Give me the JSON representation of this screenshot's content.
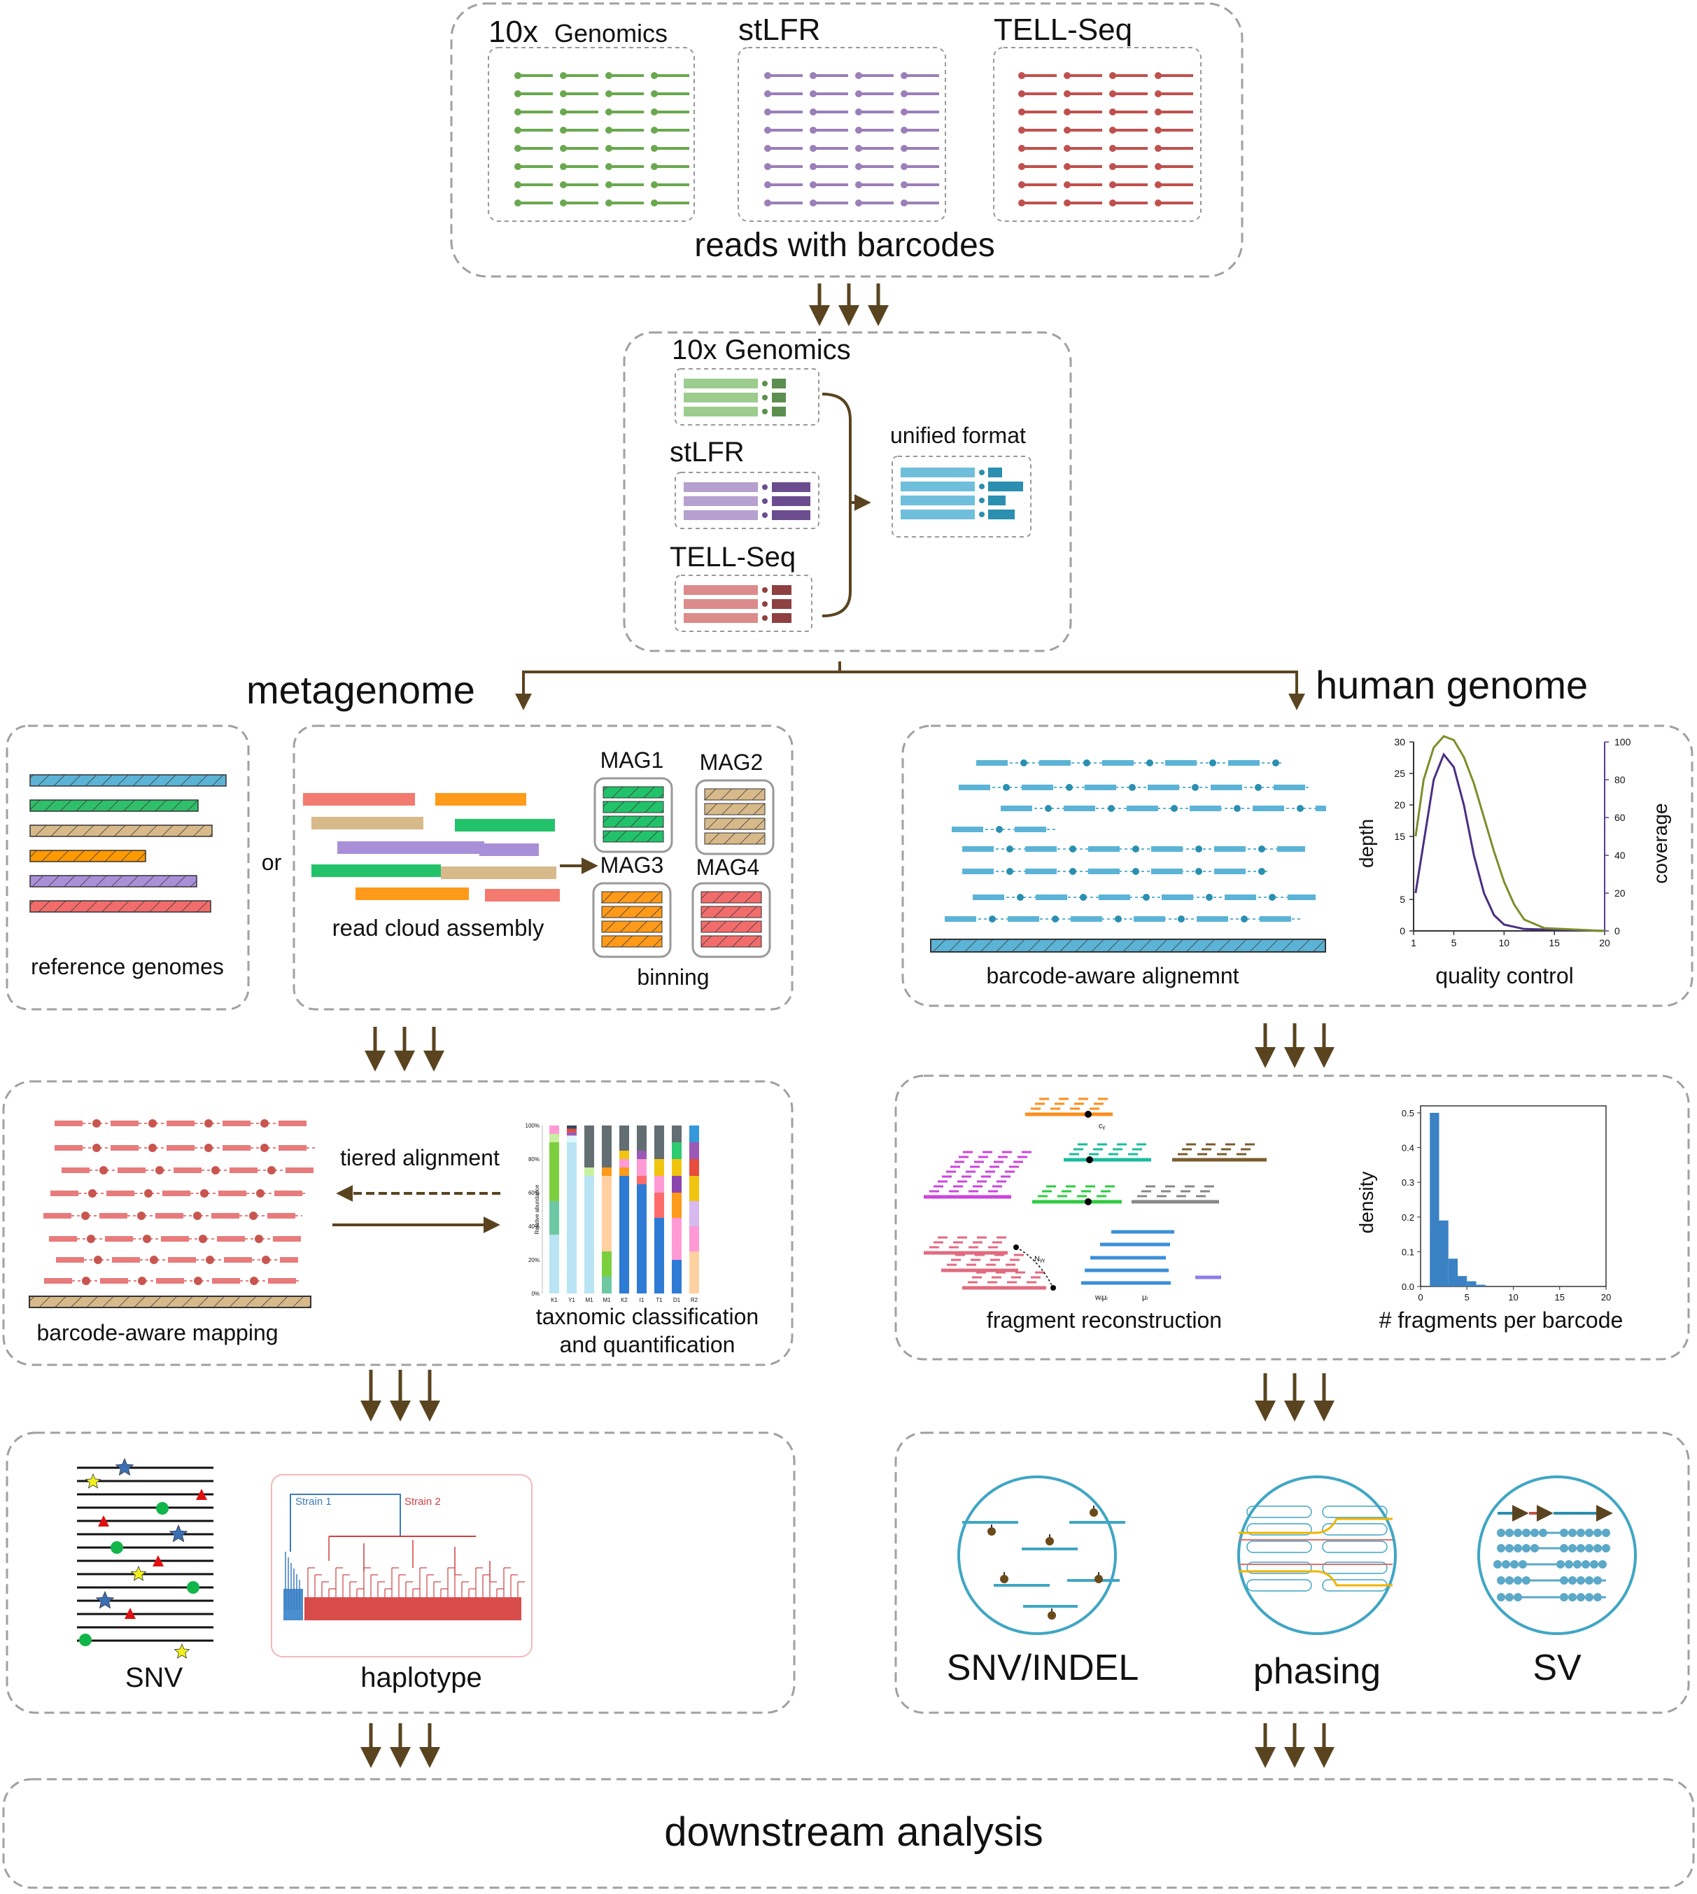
{
  "platforms": {
    "tenx_prefix": "10x",
    "tenx_suffix": "Genomics",
    "stlfr": "stLFR",
    "tellseq": "TELL-Seq",
    "reads_caption": "reads with barcodes"
  },
  "conversion": {
    "tenx": "10x Genomics",
    "stlfr": "stLFR",
    "tellseq": "TELL-Seq",
    "unified": "unified format"
  },
  "branches": {
    "metagenome": "metagenome",
    "human": "human genome"
  },
  "meta": {
    "reference_caption": "reference genomes",
    "or_label": "or",
    "assembly_caption": "read cloud assembly",
    "bins": [
      "MAG1",
      "MAG2",
      "MAG3",
      "MAG4"
    ],
    "binning_caption": "binning",
    "tiered": "tiered alignment",
    "mapping_caption": "barcode-aware mapping",
    "taxonomic_line1": "taxnomic classification",
    "taxonomic_line2": "and quantification",
    "taxo_ylabel": "Relative abundance",
    "taxo_yticks": [
      "100%",
      "80%",
      "60%",
      "40%",
      "20%",
      "0%"
    ],
    "taxo_xticks": [
      "K1",
      "Y1",
      "M1",
      "M1",
      "K2",
      "I1",
      "T1",
      "D1",
      "R2"
    ],
    "snv_caption": "SNV",
    "haplotype_caption": "haplotype",
    "strain1": "Strain 1",
    "strain2": "Strain 2"
  },
  "human": {
    "align_caption": "barcode-aware alignemnt",
    "qc_caption": "quality control",
    "qc_left_label": "depth",
    "qc_right_label": "coverage",
    "qc_left_ticks": [
      "30",
      "25",
      "20",
      "15",
      "5",
      "0"
    ],
    "qc_right_ticks": [
      "100",
      "80",
      "60",
      "40",
      "20",
      "0"
    ],
    "qc_x_ticks": [
      "1",
      "5",
      "10",
      "15",
      "20"
    ],
    "fragment_caption": "fragment reconstruction",
    "frag_sym1": "cᵧ",
    "frag_sym2": "Nᵧᵧ",
    "frag_sym3": "wᵢμᵢ",
    "frag_sym4": "μᵢ",
    "hist_caption": "# fragments per barcode",
    "hist_ylabel": "density",
    "hist_yticks": [
      "0.5",
      "0.4",
      "0.3",
      "0.2",
      "0.1",
      "0.0"
    ],
    "hist_xticks": [
      "0",
      "5",
      "10",
      "15",
      "20"
    ],
    "snv_indel": "SNV/INDEL",
    "phasing": "phasing",
    "sv": "SV"
  },
  "downstream": "downstream analysis",
  "colors": {
    "arrow": "#5a4420",
    "box_border": "#a0a0a0",
    "tenx": "#6aa84f",
    "stlfr": "#9b7fb8",
    "tellseq": "#c0504d",
    "unified": "#3fa6c4",
    "read_blue": "#5bb3d6",
    "read_red": "#e87b7b"
  },
  "chart_data": [
    {
      "type": "line",
      "xlim": [
        1,
        20
      ],
      "left_ylim": [
        0,
        30
      ],
      "right_ylim": [
        0,
        100
      ],
      "series": [
        {
          "values": [
            [
              1.2,
              6
            ],
            [
              2,
              14
            ],
            [
              3,
              24
            ],
            [
              4,
              28
            ],
            [
              5,
              26
            ],
            [
              6,
              20
            ],
            [
              7,
              12
            ],
            [
              8,
              6
            ],
            [
              9,
              2.5
            ],
            [
              10,
              1
            ],
            [
              12,
              0.3
            ],
            [
              20,
              0
            ]
          ]
        },
        {
          "values": [
            [
              1.2,
              50
            ],
            [
              2,
              80
            ],
            [
              3,
              97
            ],
            [
              4,
              103
            ],
            [
              5,
              101
            ],
            [
              6,
              92
            ],
            [
              7,
              78
            ],
            [
              8,
              60
            ],
            [
              9,
              42
            ],
            [
              10,
              26
            ],
            [
              11,
              14
            ],
            [
              12,
              6
            ],
            [
              14,
              1.5
            ],
            [
              20,
              0
            ]
          ]
        }
      ]
    },
    {
      "type": "bar",
      "x": [
        1.5,
        2.5,
        3.5,
        4.5,
        5.5,
        6.5
      ],
      "values": [
        0.5,
        0.19,
        0.08,
        0.03,
        0.015,
        0.005
      ],
      "xlabel": "# fragments per barcode",
      "ylabel": "density",
      "xlim": [
        0,
        20
      ],
      "ylim": [
        0,
        0.52
      ]
    }
  ]
}
